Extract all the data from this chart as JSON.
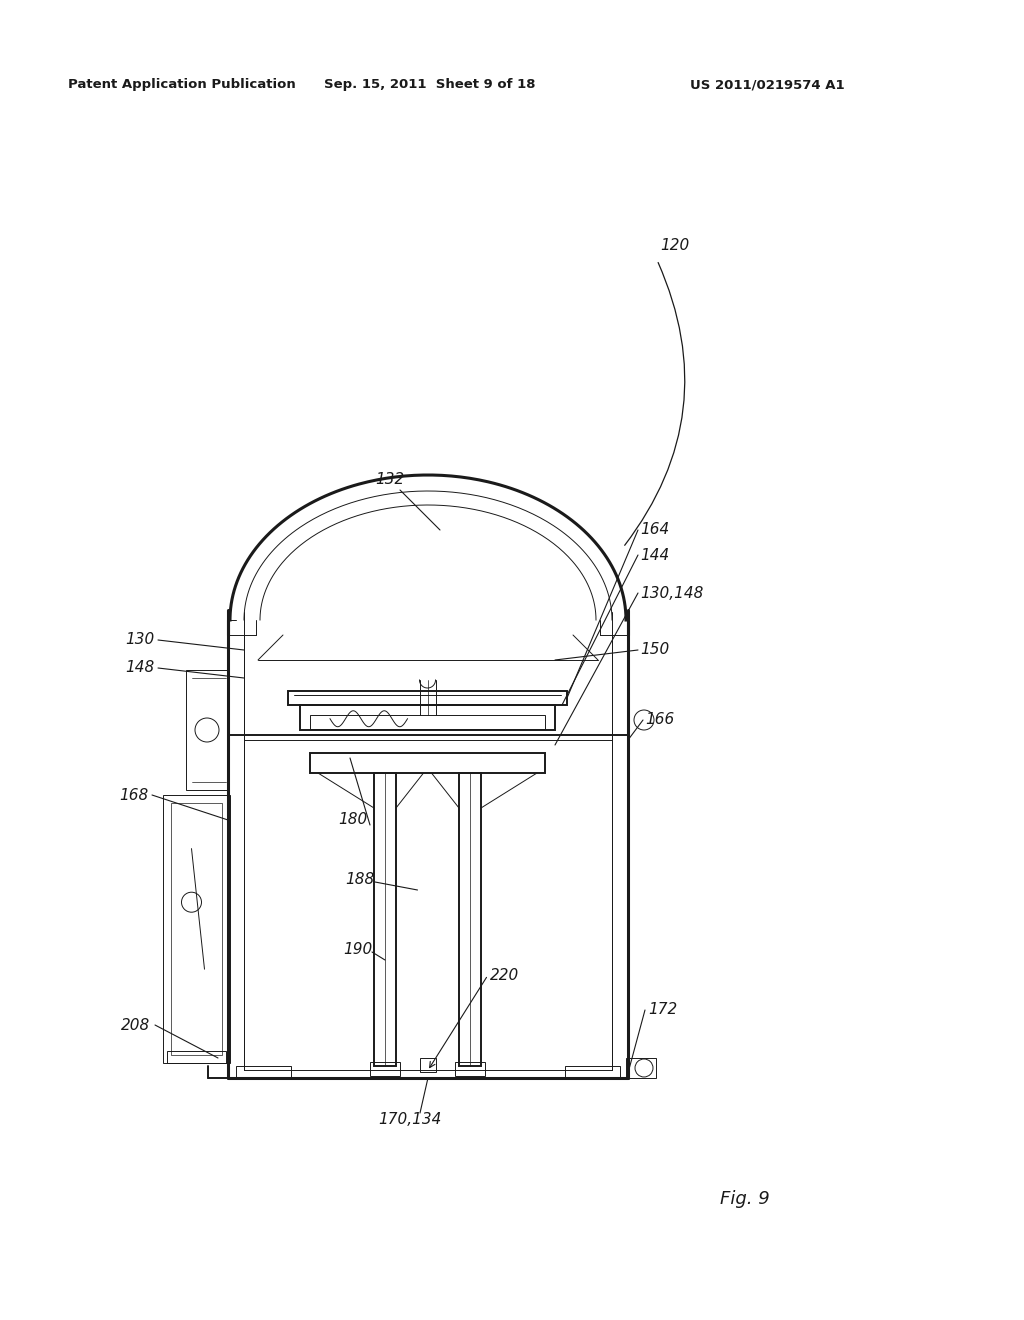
{
  "bg_color": "#ffffff",
  "line_color": "#1a1a1a",
  "header_left": "Patent Application Publication",
  "header_center": "Sep. 15, 2011  Sheet 9 of 18",
  "header_right": "US 2011/0219574 A1",
  "figure_label": "Fig. 9",
  "lw_outer": 2.2,
  "lw_main": 1.4,
  "lw_thin": 0.7,
  "lw_hairline": 0.5,
  "label_fs": 11,
  "header_fs": 9.5
}
